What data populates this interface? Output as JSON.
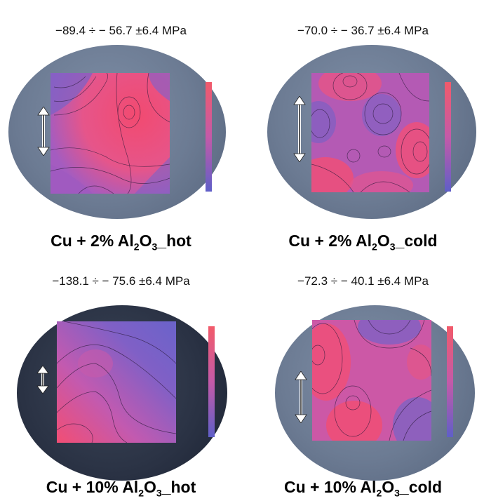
{
  "panels": [
    {
      "range": "−89.4 ÷ − 56.7 ±6.4 MPa",
      "caption_main": "Cu + 2% Al",
      "caption_sub1": "2",
      "caption_mid": "O",
      "caption_sub2": "3",
      "caption_tail": "_hot"
    },
    {
      "range": "−70.0 ÷ − 36.7 ±6.4 MPa",
      "caption_main": "Cu + 2% Al",
      "caption_sub1": "2",
      "caption_mid": "O",
      "caption_sub2": "3",
      "caption_tail": "_cold"
    },
    {
      "range": "−138.1 ÷ − 75.6 ±6.4 MPa",
      "caption_main": "Cu + 10% Al",
      "caption_sub1": "2",
      "caption_mid": "O",
      "caption_sub2": "3",
      "caption_tail": "_hot"
    },
    {
      "range": "−72.3 ÷ − 40.1 ±6.4 MPa",
      "caption_main": "Cu + 10% Al",
      "caption_sub1": "2",
      "caption_mid": "O",
      "caption_sub2": "3",
      "caption_tail": "_cold"
    }
  ],
  "colors": {
    "stress_high": "#f0506e",
    "stress_low": "#6c63c8"
  }
}
